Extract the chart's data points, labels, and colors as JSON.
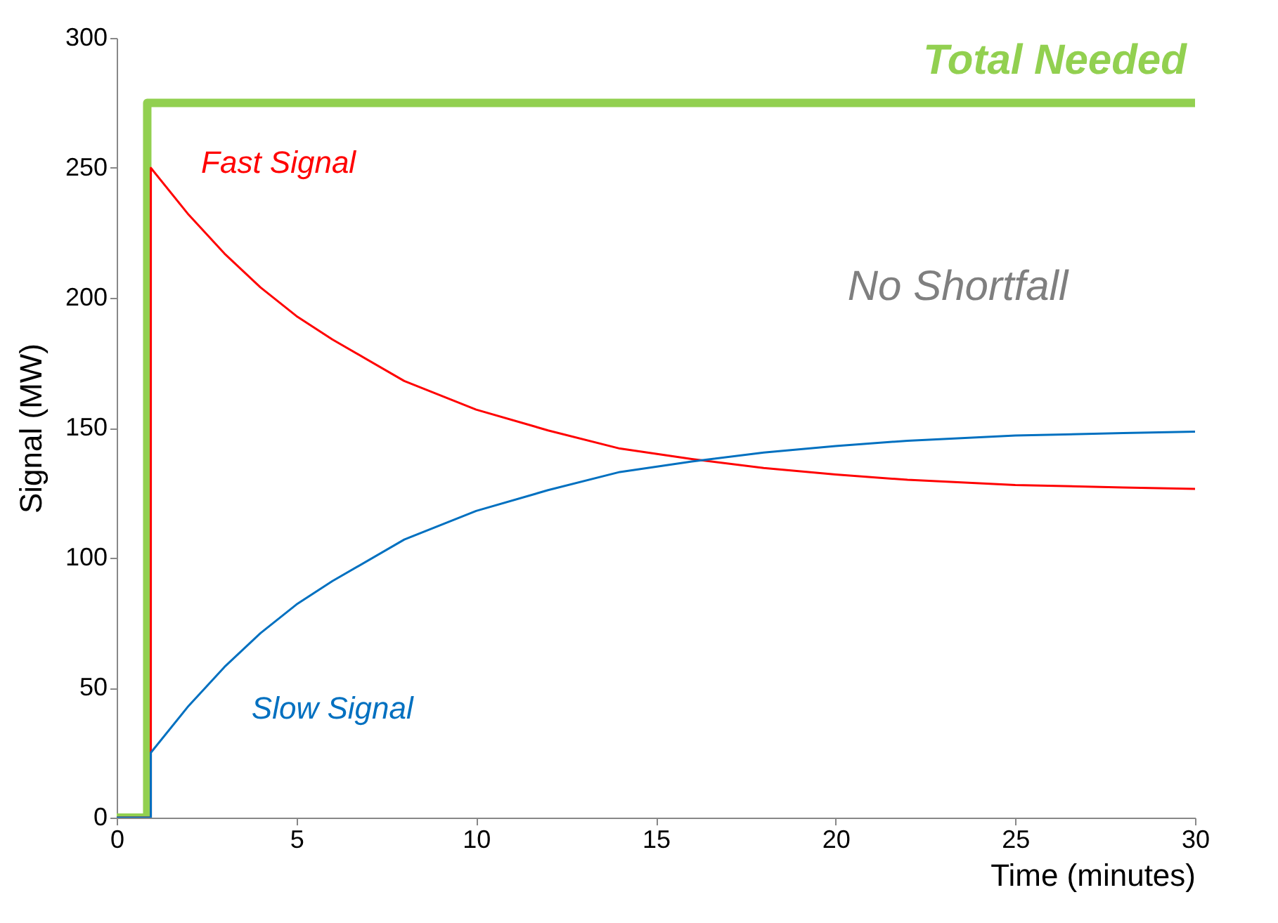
{
  "chart_data": {
    "type": "line",
    "xlabel": "Time (minutes)",
    "ylabel": "Signal (MW)",
    "xlim": [
      0,
      30
    ],
    "xticks": [
      0,
      5,
      10,
      15,
      20,
      25,
      30
    ],
    "ylim": [
      0,
      300
    ],
    "yticks": [
      0,
      50,
      100,
      150,
      200,
      250,
      300
    ],
    "grid": false,
    "annotations": [
      "No Shortfall"
    ],
    "series": [
      {
        "name": "Total Needed",
        "color": "#92d050",
        "x": [
          0,
          0.85,
          0.85,
          30
        ],
        "values": [
          0,
          0,
          275,
          275
        ]
      },
      {
        "name": "Fast Signal",
        "color": "#ff0000",
        "x": [
          0,
          0.95,
          0.95,
          2,
          3,
          4,
          5,
          6,
          8,
          10,
          12,
          14,
          16,
          18,
          20,
          22,
          25,
          28,
          30
        ],
        "values": [
          0,
          0,
          250,
          232,
          217,
          204,
          193,
          184,
          168,
          157,
          149,
          142,
          138,
          134.5,
          132,
          130,
          128,
          127,
          126.5
        ]
      },
      {
        "name": "Slow Signal",
        "color": "#0070c0",
        "x": [
          0,
          0.95,
          0.95,
          2,
          3,
          4,
          5,
          6,
          8,
          10,
          12,
          14,
          16,
          18,
          20,
          22,
          25,
          28,
          30
        ],
        "values": [
          0,
          0,
          25,
          43,
          58,
          71,
          82,
          91,
          107,
          118,
          126,
          133,
          137,
          140.5,
          143,
          145,
          147,
          148,
          148.5
        ]
      }
    ]
  }
}
